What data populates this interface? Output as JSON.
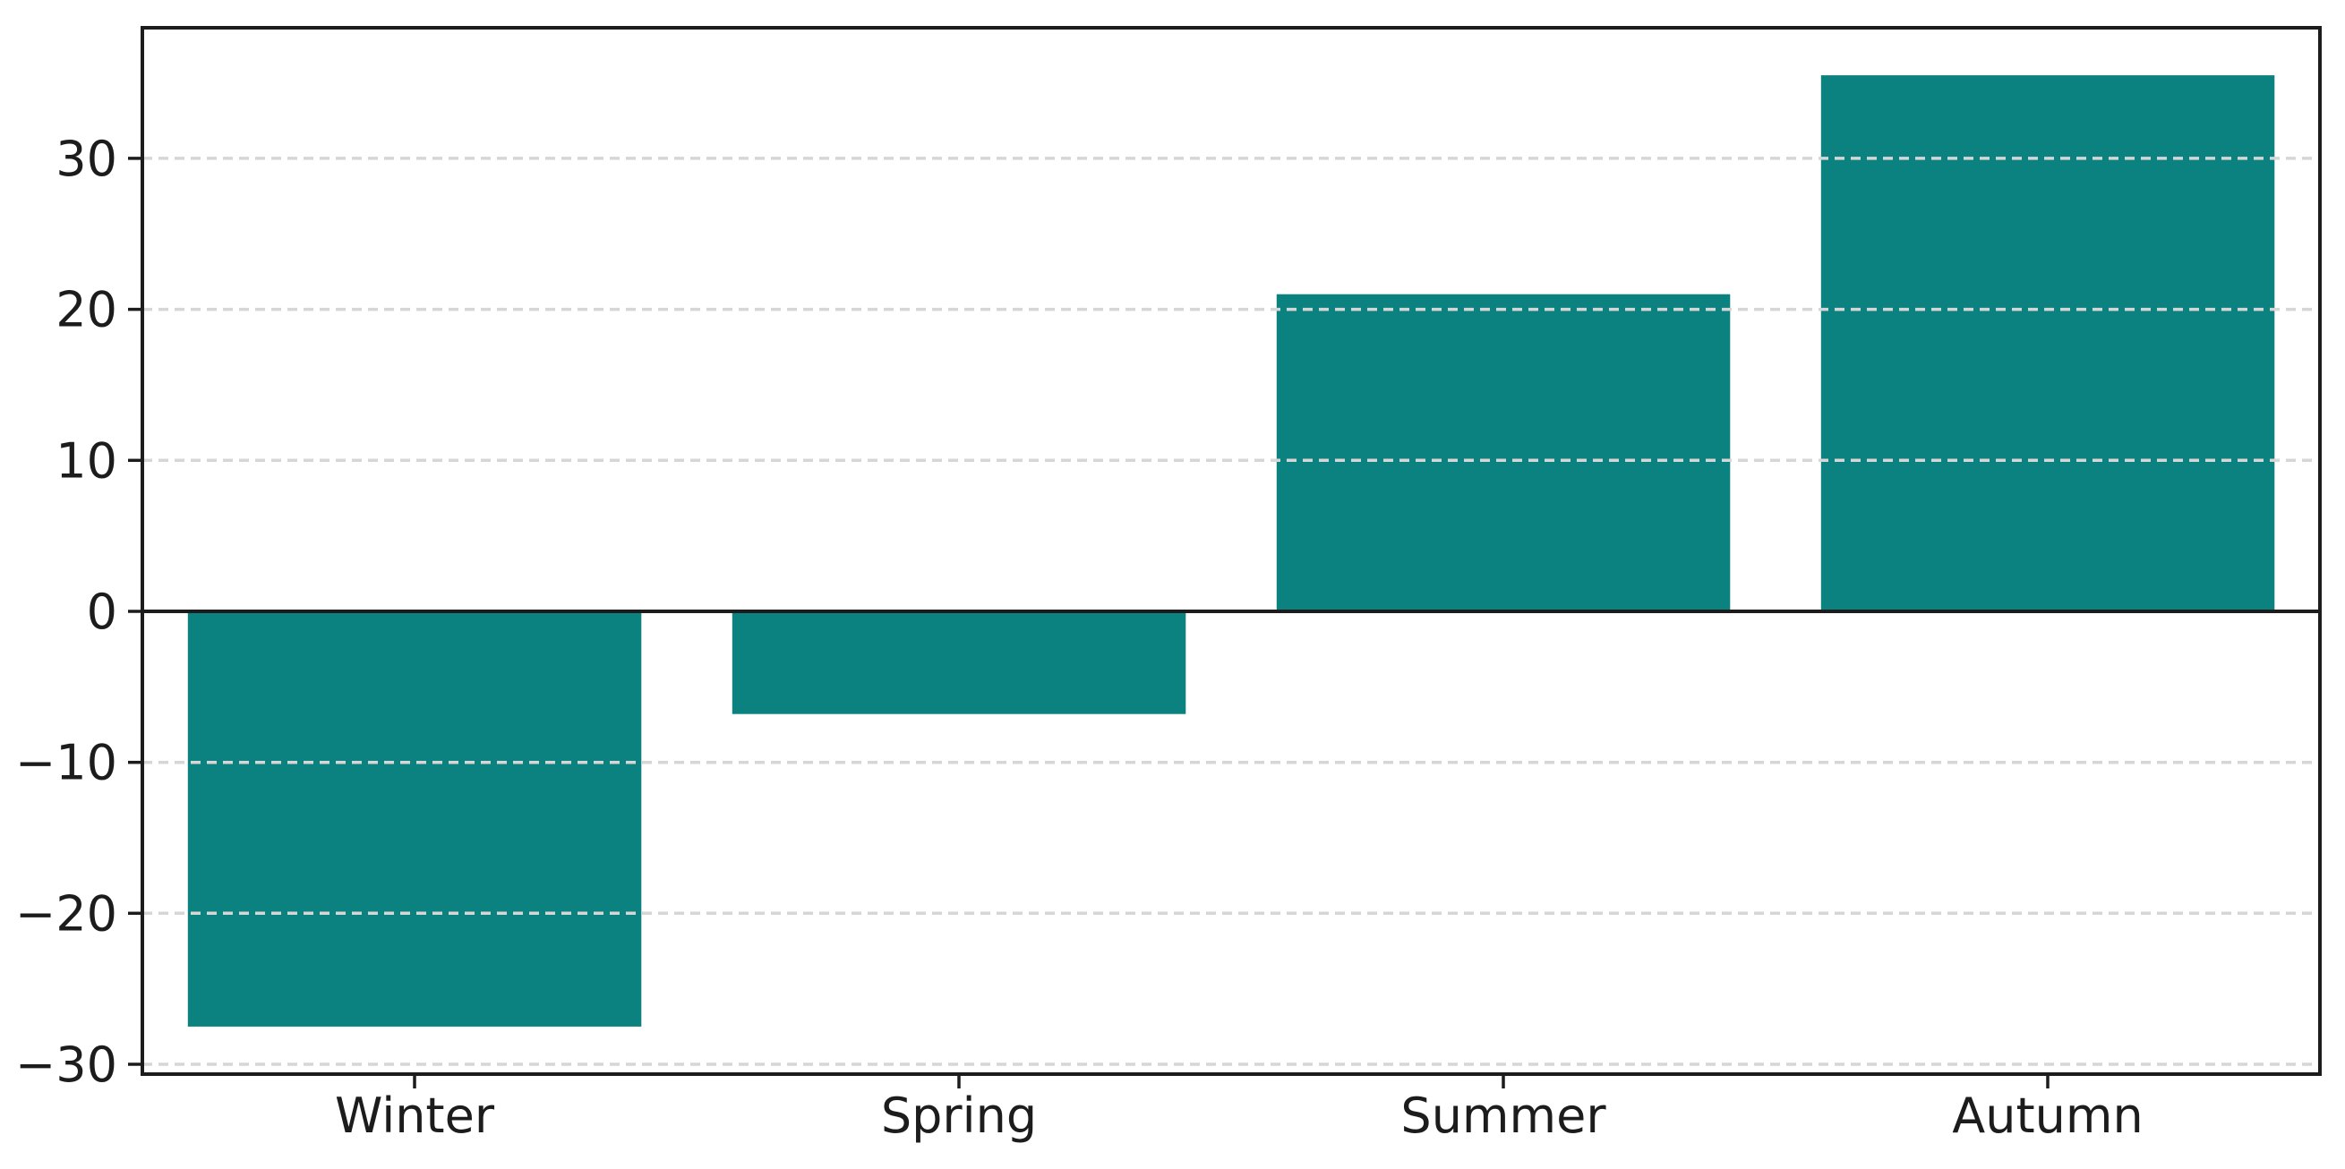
{
  "figure": {
    "background": "#ffffff"
  },
  "chart_data": {
    "type": "bar",
    "title": "",
    "xlabel": "",
    "ylabel": "",
    "categories": [
      "Winter",
      "Spring",
      "Summer",
      "Autumn"
    ],
    "values": [
      -27.5,
      -6.8,
      21.0,
      35.5
    ],
    "ylim": [
      -30.65,
      38.65
    ],
    "yticks": [
      -30,
      -20,
      -10,
      0,
      10,
      20,
      30
    ],
    "ytick_labels": [
      "−30",
      "−20",
      "−10",
      "0",
      "10",
      "20",
      "30"
    ],
    "grid": {
      "axis": "y",
      "style": "dashed",
      "drawn_above_bars": true,
      "zero_line": "solid"
    },
    "legend": "none",
    "colors": {
      "bar": "#0b8180",
      "grid": "#d6d6d6",
      "axis": "#1c1c1c",
      "tick_label": "#1c1c1c",
      "zero_line": "#1c1c1c",
      "background": "#ffffff"
    }
  }
}
